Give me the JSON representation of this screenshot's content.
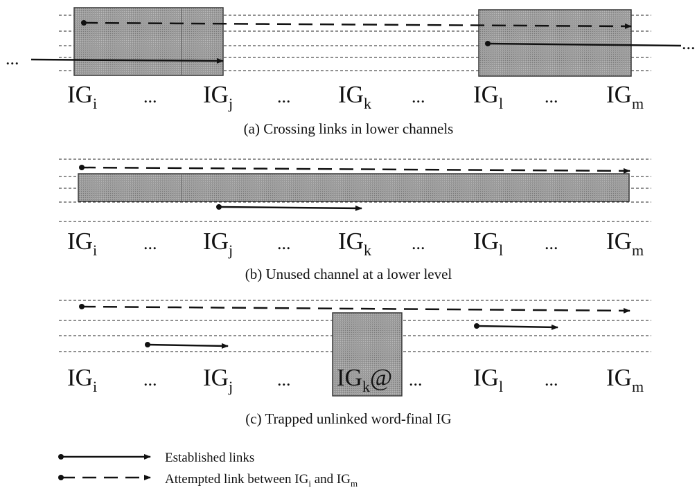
{
  "ig_labels": [
    {
      "base": "IG",
      "sub": "i"
    },
    {
      "base": "IG",
      "sub": "j"
    },
    {
      "base": "IG",
      "sub": "k"
    },
    {
      "base": "IG",
      "sub": "l"
    },
    {
      "base": "IG",
      "sub": "m"
    }
  ],
  "ellipsis": "...",
  "at_sign": "@",
  "panels": [
    {
      "id": "a",
      "caption": "(a) Crossing links in lower channels"
    },
    {
      "id": "b",
      "caption": "(b) Unused channel at a lower level"
    },
    {
      "id": "c",
      "caption": "(c) Trapped unlinked word-final IG"
    }
  ],
  "legend": {
    "established": "Established  links",
    "attempted_prefix": "Attempted link between IG",
    "attempted_sub1": "i",
    "attempted_mid": " and IG",
    "attempted_sub2": "m"
  },
  "colors": {
    "box_fill": "#9c9c9c",
    "box_stroke": "#3a3a3a",
    "line": "#111111"
  }
}
